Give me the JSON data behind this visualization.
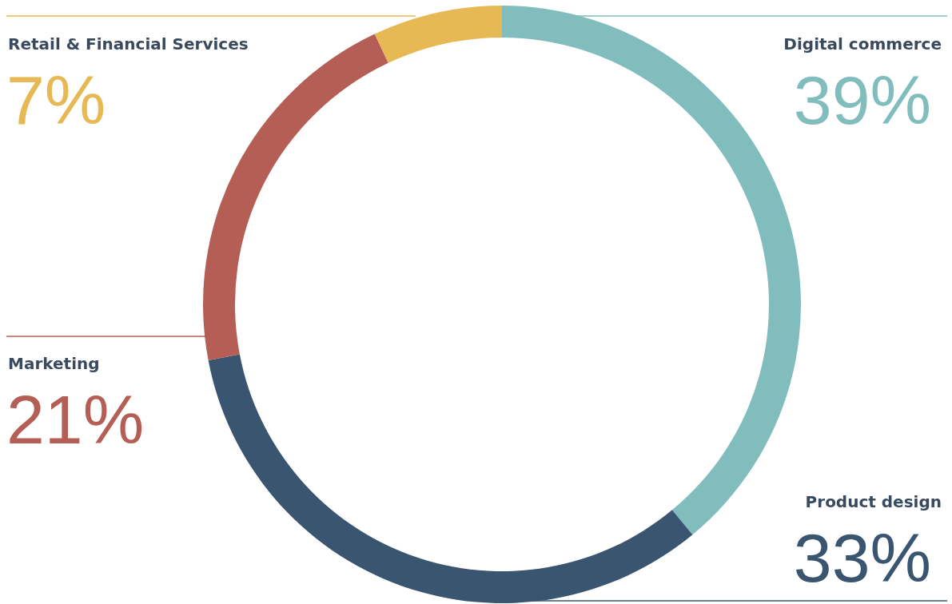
{
  "chart_data": {
    "type": "donut",
    "categories": [
      "Digital commerce",
      "Product design",
      "Marketing",
      "Retail & Financial Services"
    ],
    "values": [
      39,
      33,
      21,
      7
    ],
    "colors": [
      "#82bdbd",
      "#3a5570",
      "#b55e56",
      "#e6b955"
    ],
    "value_labels": [
      "39%",
      "33%",
      "21%",
      "7%"
    ]
  }
}
